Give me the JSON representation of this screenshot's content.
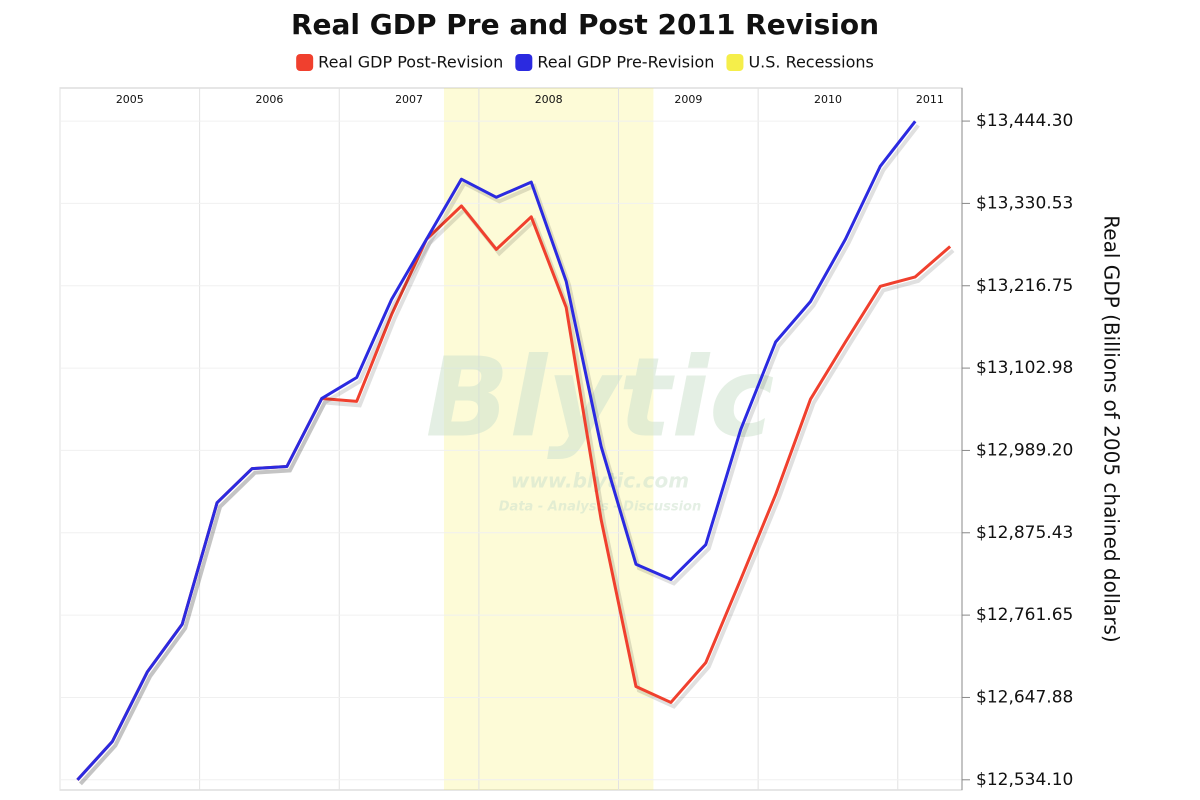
{
  "chart_data": {
    "type": "line",
    "title": "Real GDP Pre and Post 2011 Revision",
    "y_label": "Real GDP (Billions of 2005 chained dollars)",
    "watermark": [
      "Blytic",
      "www.blytic.com",
      "Data - Analysis - Discussion"
    ],
    "x": [
      2005.125,
      2005.375,
      2005.625,
      2005.875,
      2006.125,
      2006.375,
      2006.625,
      2006.875,
      2007.125,
      2007.375,
      2007.625,
      2007.875,
      2008.125,
      2008.375,
      2008.625,
      2008.875,
      2009.125,
      2009.375,
      2009.625,
      2009.875,
      2010.125,
      2010.375,
      2010.625,
      2010.875,
      2011.125,
      2011.375
    ],
    "series": [
      {
        "name": "Real GDP Post-Revision",
        "color": "#f0402e",
        "values": [
          12534,
          12587,
          12683,
          12749,
          12917,
          12964,
          12967,
          13061,
          13057,
          13177,
          13281,
          13327,
          13267,
          13312,
          13187,
          12894,
          12663,
          12641,
          12696,
          12811,
          12928,
          13060,
          13139,
          13216,
          13229,
          13271
        ]
      },
      {
        "name": "Real GDP Pre-Revision",
        "color": "#2b2ae0",
        "values": [
          12534,
          12587,
          12683,
          12749,
          12917,
          12964,
          12967,
          13061,
          13090,
          13198,
          13281,
          13364,
          13339,
          13360,
          13223,
          12995,
          12832,
          12811,
          12859,
          13018,
          13139,
          13195,
          13281,
          13382,
          13444,
          null
        ]
      }
    ],
    "recessions": {
      "name": "U.S. Recessions",
      "color": "#f5ee4a",
      "ranges": [
        [
          2007.75,
          2009.25
        ]
      ]
    },
    "xlim": [
      2005,
      2011.46
    ],
    "xticks": [
      {
        "value": 2005,
        "label": "2005"
      },
      {
        "value": 2006,
        "label": "2006"
      },
      {
        "value": 2007,
        "label": "2007"
      },
      {
        "value": 2008,
        "label": "2008"
      },
      {
        "value": 2009,
        "label": "2009"
      },
      {
        "value": 2010,
        "label": "2010"
      },
      {
        "value": 2011,
        "label": "2011"
      }
    ],
    "ylim": [
      12520,
      13490
    ],
    "yticks": [
      {
        "value": 12534.1,
        "label": "$12,534.10"
      },
      {
        "value": 12647.88,
        "label": "$12,647.88"
      },
      {
        "value": 12761.65,
        "label": "$12,761.65"
      },
      {
        "value": 12875.43,
        "label": "$12,875.43"
      },
      {
        "value": 12989.2,
        "label": "$12,989.20"
      },
      {
        "value": 13102.98,
        "label": "$13,102.98"
      },
      {
        "value": 13216.75,
        "label": "$13,216.75"
      },
      {
        "value": 13330.53,
        "label": "$13,330.53"
      },
      {
        "value": 13444.3,
        "label": "$13,444.30"
      }
    ],
    "grid": true,
    "legend": "top"
  }
}
